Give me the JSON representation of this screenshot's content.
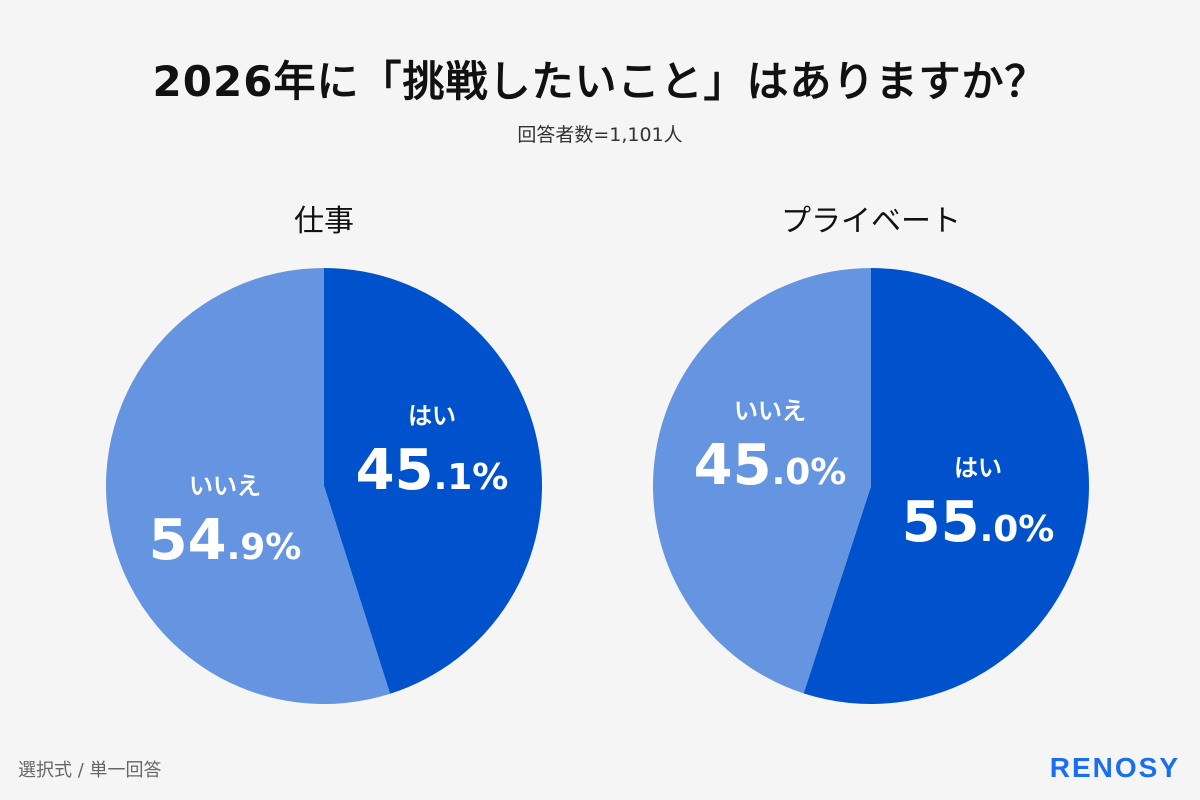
{
  "title": "2026年に「挑戦したいこと」はありますか？",
  "subtitle": "回答者数=1,101人",
  "footnote": "選択式 / 単一回答",
  "logo": "RENOSY",
  "colors": {
    "yes": "#0052cc",
    "no": "#6595e0",
    "brand": "#1a6ff0",
    "background": "#f5f5f5"
  },
  "chart_data": [
    {
      "type": "pie",
      "title": "仕事",
      "start": "top",
      "direction": "clockwise",
      "slices": [
        {
          "label": "はい",
          "value": 45.1,
          "color": "#0052cc"
        },
        {
          "label": "いいえ",
          "value": 54.9,
          "color": "#6595e0"
        }
      ]
    },
    {
      "type": "pie",
      "title": "プライベート",
      "start": "top",
      "direction": "clockwise",
      "slices": [
        {
          "label": "はい",
          "value": 55.0,
          "color": "#0052cc"
        },
        {
          "label": "いいえ",
          "value": 45.0,
          "color": "#6595e0"
        }
      ]
    }
  ]
}
